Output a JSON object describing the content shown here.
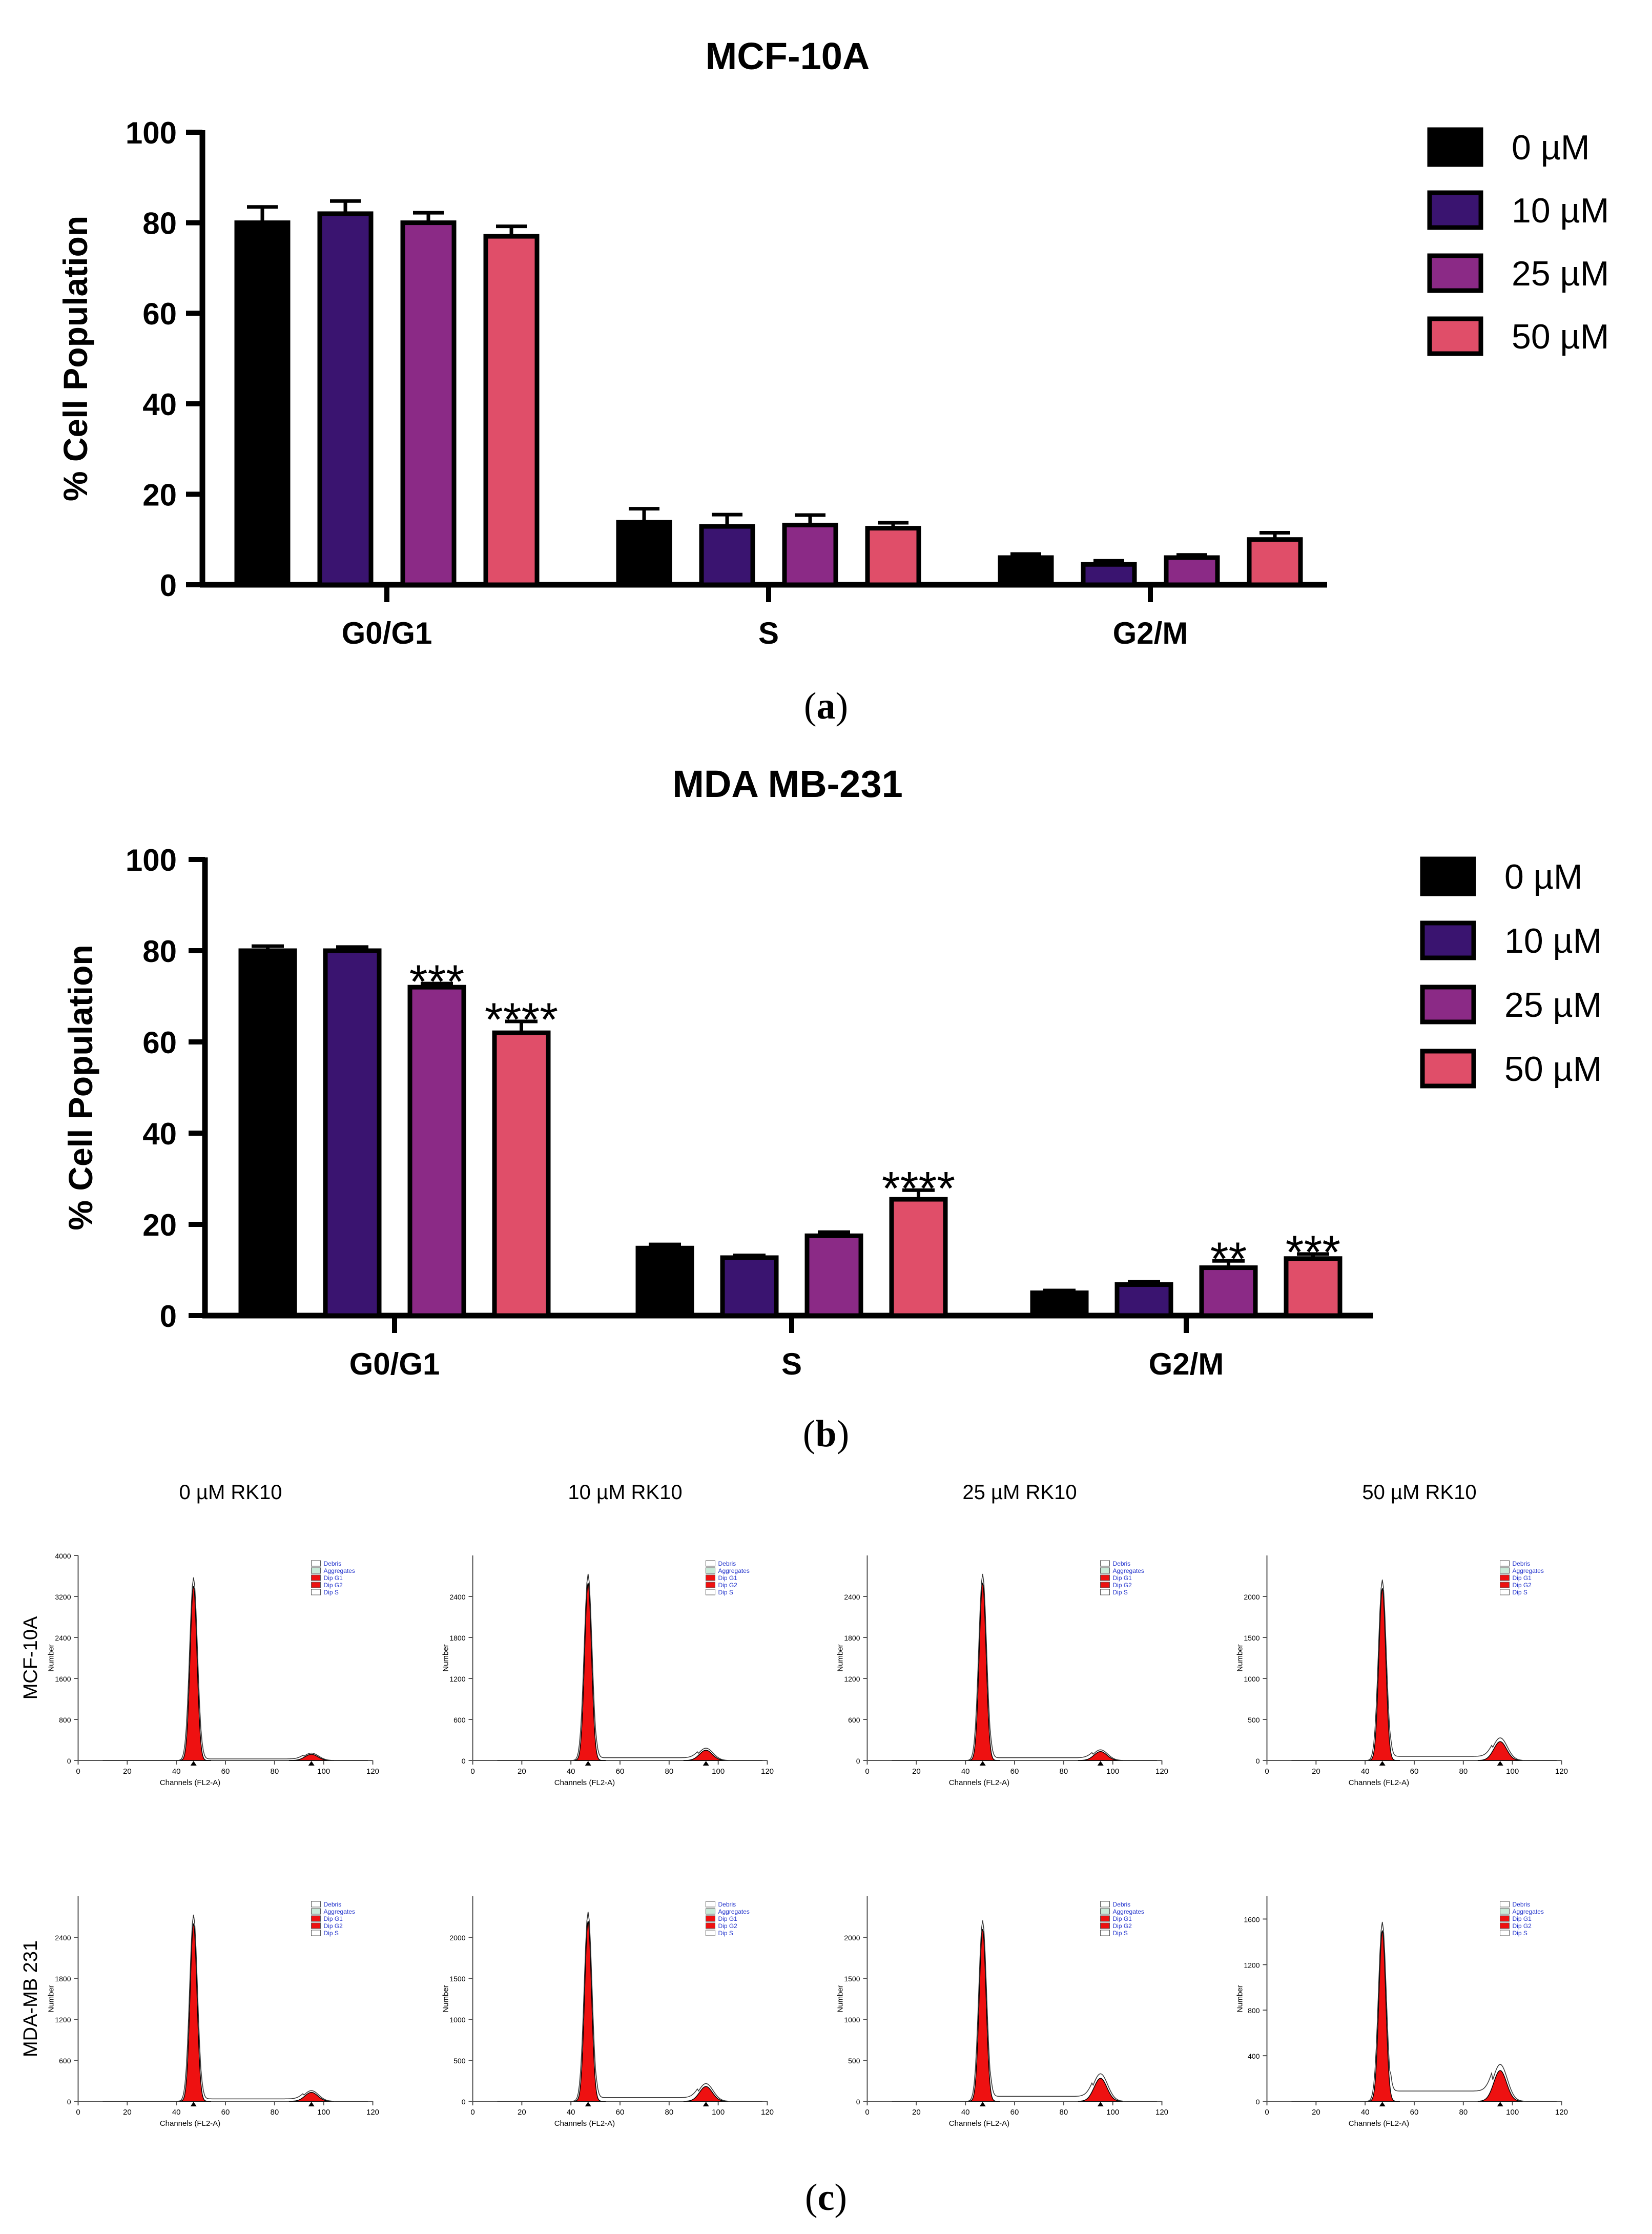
{
  "chart_data": [
    {
      "type": "bar",
      "title": "MCF-10A",
      "ylabel": "% Cell Population",
      "xlabel": "",
      "ylim": [
        0,
        100
      ],
      "yticks": [
        "0",
        "20",
        "40",
        "60",
        "80",
        "100"
      ],
      "categories": [
        "G0/G1",
        "S",
        "G2/M"
      ],
      "legend_position": "right",
      "series": [
        {
          "name": "0 µM",
          "color": "#000000",
          "values": [
            80.0,
            13.8,
            6.0
          ],
          "errors": [
            3.5,
            3.0,
            0.8
          ]
        },
        {
          "name": "10 µM",
          "color": "#3a1470",
          "values": [
            82.0,
            12.9,
            4.5
          ],
          "errors": [
            2.8,
            2.6,
            0.8
          ]
        },
        {
          "name": "25 µM",
          "color": "#8b2a86",
          "values": [
            80.0,
            13.2,
            6.0
          ],
          "errors": [
            2.2,
            2.2,
            0.6
          ]
        },
        {
          "name": "50 µM",
          "color": "#e04e69",
          "values": [
            77.0,
            12.5,
            10.0
          ],
          "errors": [
            2.2,
            1.2,
            1.5
          ]
        }
      ],
      "annotations": [],
      "caption": "(a)"
    },
    {
      "type": "bar",
      "title": "MDA MB-231",
      "ylabel": "% Cell Population",
      "xlabel": "",
      "ylim": [
        0,
        100
      ],
      "yticks": [
        "0",
        "20",
        "40",
        "60",
        "80",
        "100"
      ],
      "categories": [
        "G0/G1",
        "S",
        "G2/M"
      ],
      "legend_position": "right",
      "series": [
        {
          "name": "0 µM",
          "color": "#000000",
          "values": [
            80.0,
            14.8,
            5.0
          ],
          "errors": [
            1.0,
            0.8,
            0.5
          ]
        },
        {
          "name": "10 µM",
          "color": "#3a1470",
          "values": [
            80.0,
            12.7,
            6.8
          ],
          "errors": [
            0.8,
            0.5,
            0.6
          ]
        },
        {
          "name": "25 µM",
          "color": "#8b2a86",
          "values": [
            72.0,
            17.5,
            10.5
          ],
          "errors": [
            0.8,
            0.8,
            1.5
          ]
        },
        {
          "name": "50 µM",
          "color": "#e04e69",
          "values": [
            62.0,
            25.5,
            12.5
          ],
          "errors": [
            2.5,
            2.0,
            1.0
          ]
        }
      ],
      "annotations": [
        {
          "series": 2,
          "category": 0,
          "text": "***"
        },
        {
          "series": 3,
          "category": 0,
          "text": "****"
        },
        {
          "series": 3,
          "category": 1,
          "text": "****"
        },
        {
          "series": 2,
          "category": 2,
          "text": "**"
        },
        {
          "series": 3,
          "category": 2,
          "text": "***"
        }
      ],
      "caption": "(b)"
    }
  ],
  "histograms": {
    "column_titles": [
      "0 µM  RK10",
      "10 µM  RK10",
      "25 µM  RK10",
      "50 µM  RK10"
    ],
    "row_labels": [
      "MCF-10A",
      "MDA-MB 231"
    ],
    "x_label": "Channels (FL2-A)",
    "y_label": "Number",
    "x_ticks": [
      "0",
      "20",
      "40",
      "60",
      "80",
      "100",
      "120"
    ],
    "legend_items": [
      "Debris",
      "Aggregates",
      "Dip G1",
      "Dip G2",
      "Dip S"
    ],
    "panels": [
      {
        "y_ticks": [
          "0",
          "800",
          "1600",
          "2400",
          "3200",
          "4000"
        ],
        "y_max": 4000,
        "g1_peak": 3400,
        "g2_peak": 120,
        "s_level": 30
      },
      {
        "y_ticks": [
          "0",
          "600",
          "1200",
          "1800",
          "2400"
        ],
        "y_max": 3000,
        "g1_peak": 2600,
        "g2_peak": 150,
        "s_level": 40
      },
      {
        "y_ticks": [
          "0",
          "600",
          "1200",
          "1800",
          "2400"
        ],
        "y_max": 3000,
        "g1_peak": 2600,
        "g2_peak": 130,
        "s_level": 40
      },
      {
        "y_ticks": [
          "0",
          "500",
          "1000",
          "1500",
          "2000"
        ],
        "y_max": 2500,
        "g1_peak": 2100,
        "g2_peak": 230,
        "s_level": 50
      },
      {
        "y_ticks": [
          "0",
          "600",
          "1200",
          "1800",
          "2400"
        ],
        "y_max": 3000,
        "g1_peak": 2600,
        "g2_peak": 130,
        "s_level": 35
      },
      {
        "y_ticks": [
          "0",
          "500",
          "1000",
          "1500",
          "2000"
        ],
        "y_max": 2500,
        "g1_peak": 2200,
        "g2_peak": 180,
        "s_level": 45
      },
      {
        "y_ticks": [
          "0",
          "500",
          "1000",
          "1500",
          "2000"
        ],
        "y_max": 2500,
        "g1_peak": 2100,
        "g2_peak": 280,
        "s_level": 60
      },
      {
        "y_ticks": [
          "0",
          "400",
          "800",
          "1200",
          "1600"
        ],
        "y_max": 1800,
        "g1_peak": 1500,
        "g2_peak": 270,
        "s_level": 90
      }
    ],
    "caption": "(c)"
  }
}
